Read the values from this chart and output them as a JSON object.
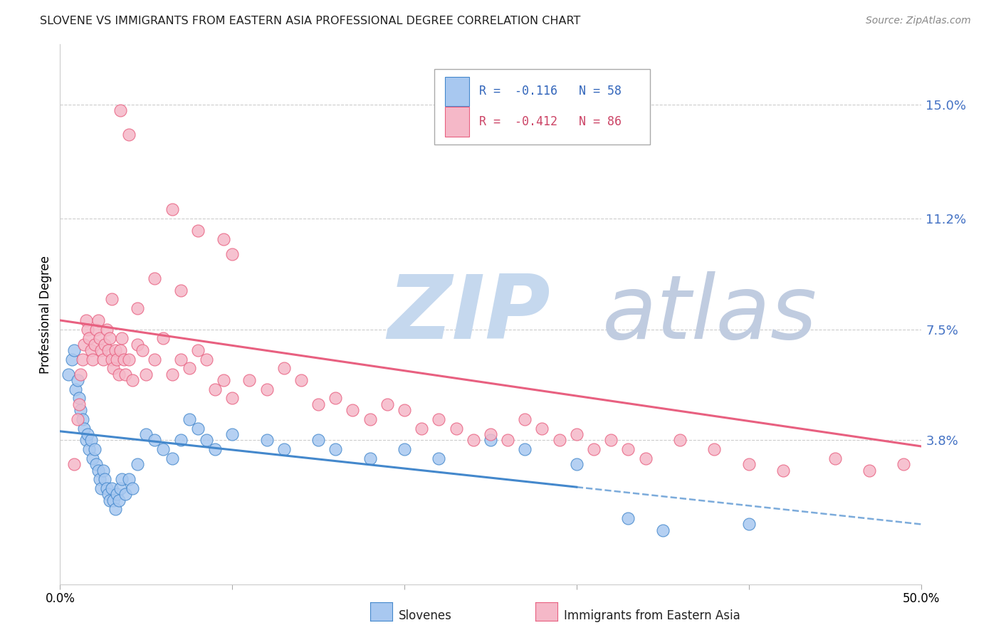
{
  "title": "SLOVENE VS IMMIGRANTS FROM EASTERN ASIA PROFESSIONAL DEGREE CORRELATION CHART",
  "source": "Source: ZipAtlas.com",
  "ylabel": "Professional Degree",
  "ytick_labels": [
    "3.8%",
    "7.5%",
    "11.2%",
    "15.0%"
  ],
  "ytick_values": [
    0.038,
    0.075,
    0.112,
    0.15
  ],
  "xlim": [
    0.0,
    0.5
  ],
  "ylim": [
    -0.01,
    0.17
  ],
  "blue_R": -0.116,
  "blue_N": 58,
  "pink_R": -0.412,
  "pink_N": 86,
  "blue_color": "#a8c8f0",
  "pink_color": "#f5b8c8",
  "blue_line_color": "#4488cc",
  "pink_line_color": "#e86080",
  "blue_line_solid_end": 0.3,
  "blue_line_x0": 0.0,
  "blue_line_y0": 0.041,
  "blue_line_x1": 0.5,
  "blue_line_y1": 0.01,
  "pink_line_x0": 0.0,
  "pink_line_y0": 0.078,
  "pink_line_x1": 0.5,
  "pink_line_y1": 0.036,
  "blue_scatter": [
    [
      0.005,
      0.06
    ],
    [
      0.007,
      0.065
    ],
    [
      0.008,
      0.068
    ],
    [
      0.009,
      0.055
    ],
    [
      0.01,
      0.058
    ],
    [
      0.011,
      0.052
    ],
    [
      0.012,
      0.048
    ],
    [
      0.013,
      0.045
    ],
    [
      0.014,
      0.042
    ],
    [
      0.015,
      0.038
    ],
    [
      0.016,
      0.04
    ],
    [
      0.017,
      0.035
    ],
    [
      0.018,
      0.038
    ],
    [
      0.019,
      0.032
    ],
    [
      0.02,
      0.035
    ],
    [
      0.021,
      0.03
    ],
    [
      0.022,
      0.028
    ],
    [
      0.023,
      0.025
    ],
    [
      0.024,
      0.022
    ],
    [
      0.025,
      0.028
    ],
    [
      0.026,
      0.025
    ],
    [
      0.027,
      0.022
    ],
    [
      0.028,
      0.02
    ],
    [
      0.029,
      0.018
    ],
    [
      0.03,
      0.022
    ],
    [
      0.031,
      0.018
    ],
    [
      0.032,
      0.015
    ],
    [
      0.033,
      0.02
    ],
    [
      0.034,
      0.018
    ],
    [
      0.035,
      0.022
    ],
    [
      0.036,
      0.025
    ],
    [
      0.038,
      0.02
    ],
    [
      0.04,
      0.025
    ],
    [
      0.042,
      0.022
    ],
    [
      0.045,
      0.03
    ],
    [
      0.05,
      0.04
    ],
    [
      0.055,
      0.038
    ],
    [
      0.06,
      0.035
    ],
    [
      0.065,
      0.032
    ],
    [
      0.07,
      0.038
    ],
    [
      0.075,
      0.045
    ],
    [
      0.08,
      0.042
    ],
    [
      0.085,
      0.038
    ],
    [
      0.09,
      0.035
    ],
    [
      0.1,
      0.04
    ],
    [
      0.12,
      0.038
    ],
    [
      0.13,
      0.035
    ],
    [
      0.15,
      0.038
    ],
    [
      0.16,
      0.035
    ],
    [
      0.18,
      0.032
    ],
    [
      0.2,
      0.035
    ],
    [
      0.22,
      0.032
    ],
    [
      0.25,
      0.038
    ],
    [
      0.27,
      0.035
    ],
    [
      0.3,
      0.03
    ],
    [
      0.33,
      0.012
    ],
    [
      0.35,
      0.008
    ],
    [
      0.4,
      0.01
    ]
  ],
  "pink_scatter": [
    [
      0.008,
      0.03
    ],
    [
      0.01,
      0.045
    ],
    [
      0.011,
      0.05
    ],
    [
      0.012,
      0.06
    ],
    [
      0.013,
      0.065
    ],
    [
      0.014,
      0.07
    ],
    [
      0.015,
      0.078
    ],
    [
      0.016,
      0.075
    ],
    [
      0.017,
      0.072
    ],
    [
      0.018,
      0.068
    ],
    [
      0.019,
      0.065
    ],
    [
      0.02,
      0.07
    ],
    [
      0.021,
      0.075
    ],
    [
      0.022,
      0.078
    ],
    [
      0.023,
      0.072
    ],
    [
      0.024,
      0.068
    ],
    [
      0.025,
      0.065
    ],
    [
      0.026,
      0.07
    ],
    [
      0.027,
      0.075
    ],
    [
      0.028,
      0.068
    ],
    [
      0.029,
      0.072
    ],
    [
      0.03,
      0.065
    ],
    [
      0.031,
      0.062
    ],
    [
      0.032,
      0.068
    ],
    [
      0.033,
      0.065
    ],
    [
      0.034,
      0.06
    ],
    [
      0.035,
      0.068
    ],
    [
      0.036,
      0.072
    ],
    [
      0.037,
      0.065
    ],
    [
      0.038,
      0.06
    ],
    [
      0.04,
      0.065
    ],
    [
      0.042,
      0.058
    ],
    [
      0.045,
      0.07
    ],
    [
      0.048,
      0.068
    ],
    [
      0.05,
      0.06
    ],
    [
      0.055,
      0.065
    ],
    [
      0.06,
      0.072
    ],
    [
      0.065,
      0.06
    ],
    [
      0.07,
      0.065
    ],
    [
      0.075,
      0.062
    ],
    [
      0.08,
      0.068
    ],
    [
      0.085,
      0.065
    ],
    [
      0.09,
      0.055
    ],
    [
      0.095,
      0.058
    ],
    [
      0.1,
      0.052
    ],
    [
      0.11,
      0.058
    ],
    [
      0.12,
      0.055
    ],
    [
      0.13,
      0.062
    ],
    [
      0.14,
      0.058
    ],
    [
      0.15,
      0.05
    ],
    [
      0.16,
      0.052
    ],
    [
      0.17,
      0.048
    ],
    [
      0.18,
      0.045
    ],
    [
      0.19,
      0.05
    ],
    [
      0.2,
      0.048
    ],
    [
      0.21,
      0.042
    ],
    [
      0.22,
      0.045
    ],
    [
      0.23,
      0.042
    ],
    [
      0.24,
      0.038
    ],
    [
      0.25,
      0.04
    ],
    [
      0.26,
      0.038
    ],
    [
      0.27,
      0.045
    ],
    [
      0.28,
      0.042
    ],
    [
      0.29,
      0.038
    ],
    [
      0.3,
      0.04
    ],
    [
      0.31,
      0.035
    ],
    [
      0.32,
      0.038
    ],
    [
      0.33,
      0.035
    ],
    [
      0.34,
      0.032
    ],
    [
      0.36,
      0.038
    ],
    [
      0.38,
      0.035
    ],
    [
      0.4,
      0.03
    ],
    [
      0.42,
      0.028
    ],
    [
      0.45,
      0.032
    ],
    [
      0.47,
      0.028
    ],
    [
      0.49,
      0.03
    ],
    [
      0.035,
      0.148
    ],
    [
      0.04,
      0.14
    ],
    [
      0.065,
      0.115
    ],
    [
      0.08,
      0.108
    ],
    [
      0.095,
      0.105
    ],
    [
      0.1,
      0.1
    ],
    [
      0.055,
      0.092
    ],
    [
      0.07,
      0.088
    ],
    [
      0.03,
      0.085
    ],
    [
      0.045,
      0.082
    ]
  ],
  "watermark_zip": "ZIP",
  "watermark_atlas": "atlas",
  "watermark_color_zip": "#c5d8ee",
  "watermark_color_atlas": "#c0cce0",
  "grid_color": "#cccccc"
}
